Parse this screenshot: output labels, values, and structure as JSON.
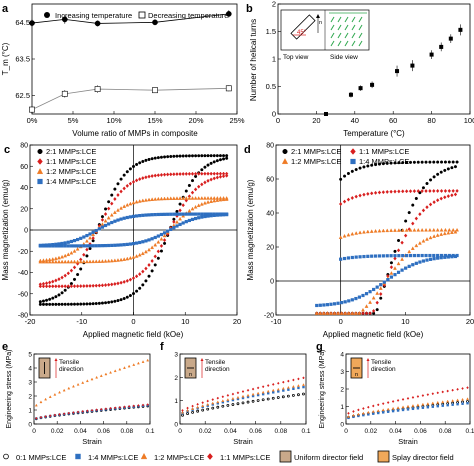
{
  "chart_data": [
    {
      "panel": "a",
      "type": "line",
      "ylabel": "T_m (°C)",
      "xlabel": "Volume ratio of MMPs in composite",
      "xlim": [
        0,
        25
      ],
      "ylim": [
        62,
        65
      ],
      "xticks": [
        "0%",
        "5%",
        "10%",
        "15%",
        "20%",
        "25%"
      ],
      "yticks": [
        "62.5",
        "63.5",
        "64.5"
      ],
      "series": [
        {
          "name": "Increasing temperature",
          "marker": "filled-circle",
          "x": [
            0,
            4,
            8,
            15,
            24
          ],
          "y": [
            64.48,
            64.58,
            64.47,
            64.5,
            64.73
          ],
          "err": [
            0.1,
            0.12,
            0.08,
            0.06,
            0.1
          ]
        },
        {
          "name": "Decreasing temperature",
          "marker": "open-square",
          "x": [
            0,
            4,
            8,
            15,
            24
          ],
          "y": [
            62.12,
            62.55,
            62.68,
            62.65,
            62.7
          ],
          "err": [
            0.1,
            0.1,
            0.1,
            0.05,
            0.08
          ]
        }
      ],
      "legend": "top"
    },
    {
      "panel": "b",
      "type": "scatter",
      "ylabel": "Number of helical turns",
      "xlabel": "Temperature (°C)",
      "xlim": [
        0,
        100
      ],
      "ylim": [
        0,
        2
      ],
      "xticks": [
        "0",
        "20",
        "40",
        "60",
        "80",
        "100"
      ],
      "yticks": [
        "0",
        "0.5",
        "1",
        "1.5",
        "2"
      ],
      "inset": {
        "top_label": "Top view",
        "side_label": "Side view",
        "angle": "45°",
        "director": "n"
      },
      "x": [
        25,
        38,
        43,
        49,
        62,
        70,
        80,
        85,
        90,
        95
      ],
      "y": [
        0,
        0.35,
        0.47,
        0.53,
        0.78,
        0.88,
        1.08,
        1.22,
        1.37,
        1.53
      ],
      "err": [
        0,
        0.05,
        0.05,
        0.06,
        0.1,
        0.1,
        0.08,
        0.08,
        0.08,
        0.1
      ]
    },
    {
      "panel": "c",
      "type": "scatter",
      "ylabel": "Mass magnetization (emu/g)",
      "xlabel": "Applied magnetic field (kOe)",
      "xlim": [
        -20,
        20
      ],
      "ylim": [
        -80,
        80
      ],
      "xticks": [
        "-20",
        "-10",
        "0",
        "10",
        "20"
      ],
      "yticks": [
        "-80",
        "-60",
        "-40",
        "-20",
        "0",
        "20",
        "40",
        "60",
        "80"
      ],
      "curve": "hysteresis",
      "series": [
        {
          "name": "2:1 MMPs:LCE",
          "color": "#000000",
          "marker": "circle",
          "Ms": 70,
          "Hc": 7
        },
        {
          "name": "1:1 MMPs:LCE",
          "color": "#d81e1e",
          "marker": "diamond",
          "Ms": 53,
          "Hc": 7
        },
        {
          "name": "1:2 MMPs:LCE",
          "color": "#ee7a24",
          "marker": "triangle",
          "Ms": 30,
          "Hc": 7
        },
        {
          "name": "1:4 MMPs:LCE",
          "color": "#2e6fc0",
          "marker": "square",
          "Ms": 15,
          "Hc": 7
        }
      ]
    },
    {
      "panel": "d",
      "type": "scatter",
      "ylabel": "Mass magnetization (emu/g)",
      "xlabel": "Applied magnetic field (kOe)",
      "xlim": [
        -10,
        20
      ],
      "ylim": [
        -20,
        80
      ],
      "xticks": [
        "-10",
        "0",
        "10",
        "20"
      ],
      "yticks": [
        "-20",
        "0",
        "20",
        "40",
        "60",
        "80"
      ],
      "series": [
        {
          "name": "2:1 MMPs:LCE",
          "color": "#000000",
          "marker": "circle",
          "Ms": 70
        },
        {
          "name": "1:1 MMPs:LCE",
          "color": "#d81e1e",
          "marker": "diamond",
          "Ms": 53
        },
        {
          "name": "1:2 MMPs:LCE",
          "color": "#ee7a24",
          "marker": "triangle",
          "Ms": 30
        },
        {
          "name": "1:4 MMPs:LCE",
          "color": "#2e6fc0",
          "marker": "square",
          "Ms": 15
        }
      ]
    },
    {
      "panel": "e",
      "type": "line",
      "ylabel": "Engineering stress (MPa)",
      "xlabel": "Strain",
      "xlim": [
        0,
        0.1
      ],
      "ylim": [
        0,
        5
      ],
      "xticks": [
        "0",
        "0.02",
        "0.04",
        "0.06",
        "0.08",
        "0.1"
      ],
      "yticks": [
        "0",
        "1",
        "2",
        "3",
        "4",
        "5"
      ],
      "inset_label": "Tensile direction",
      "end_values": {
        "0:1": 1.3,
        "1:4": 1.35,
        "1:2": 4.6,
        "1:1": 1.4
      }
    },
    {
      "panel": "f",
      "type": "line",
      "xlabel": "Strain",
      "xlim": [
        0,
        0.1
      ],
      "ylim": [
        0,
        3
      ],
      "xticks": [
        "0",
        "0.02",
        "0.04",
        "0.06",
        "0.08",
        "0.1"
      ],
      "yticks": [
        "0",
        "1",
        "2",
        "3"
      ],
      "inset_label": "Tensile direction",
      "end_values": {
        "0:1": 1.3,
        "1:4": 1.6,
        "1:2": 1.7,
        "1:1": 2.0
      }
    },
    {
      "panel": "g",
      "type": "line",
      "ylabel": "Engineering stress (MPa)",
      "xlabel": "Strain",
      "xlim": [
        0,
        0.1
      ],
      "ylim": [
        0,
        4
      ],
      "xticks": [
        "0",
        "0.02",
        "0.04",
        "0.06",
        "0.08",
        "0.1"
      ],
      "yticks": [
        "0",
        "1",
        "2",
        "3",
        "4"
      ],
      "inset_label": "Tensile direction",
      "end_values": {
        "0:1": 1.3,
        "1:4": 1.2,
        "1:2": 1.45,
        "1:1": 2.1
      }
    }
  ],
  "bottom_legend": [
    {
      "label": "0:1 MMPs:LCE",
      "color": "#000000",
      "marker": "open-circle"
    },
    {
      "label": "1:4 MMPs:LCE",
      "color": "#2e6fc0",
      "marker": "square"
    },
    {
      "label": "1:2 MMPs:LCE",
      "color": "#ee7a24",
      "marker": "triangle"
    },
    {
      "label": "1:1 MMPs:LCE",
      "color": "#d81e1e",
      "marker": "diamond"
    },
    {
      "label": "Uniform director field",
      "color": "#c9a98a",
      "marker": "box"
    },
    {
      "label": "Splay director field",
      "color": "#f0a85a",
      "marker": "box"
    }
  ],
  "panel_letters": [
    "a",
    "b",
    "c",
    "d",
    "e",
    "f",
    "g"
  ],
  "colors": {
    "black": "#000000",
    "red": "#d81e1e",
    "orange": "#ee7a24",
    "blue": "#2e6fc0",
    "green": "#2fa84f",
    "insetRed": "#d81e1e"
  }
}
